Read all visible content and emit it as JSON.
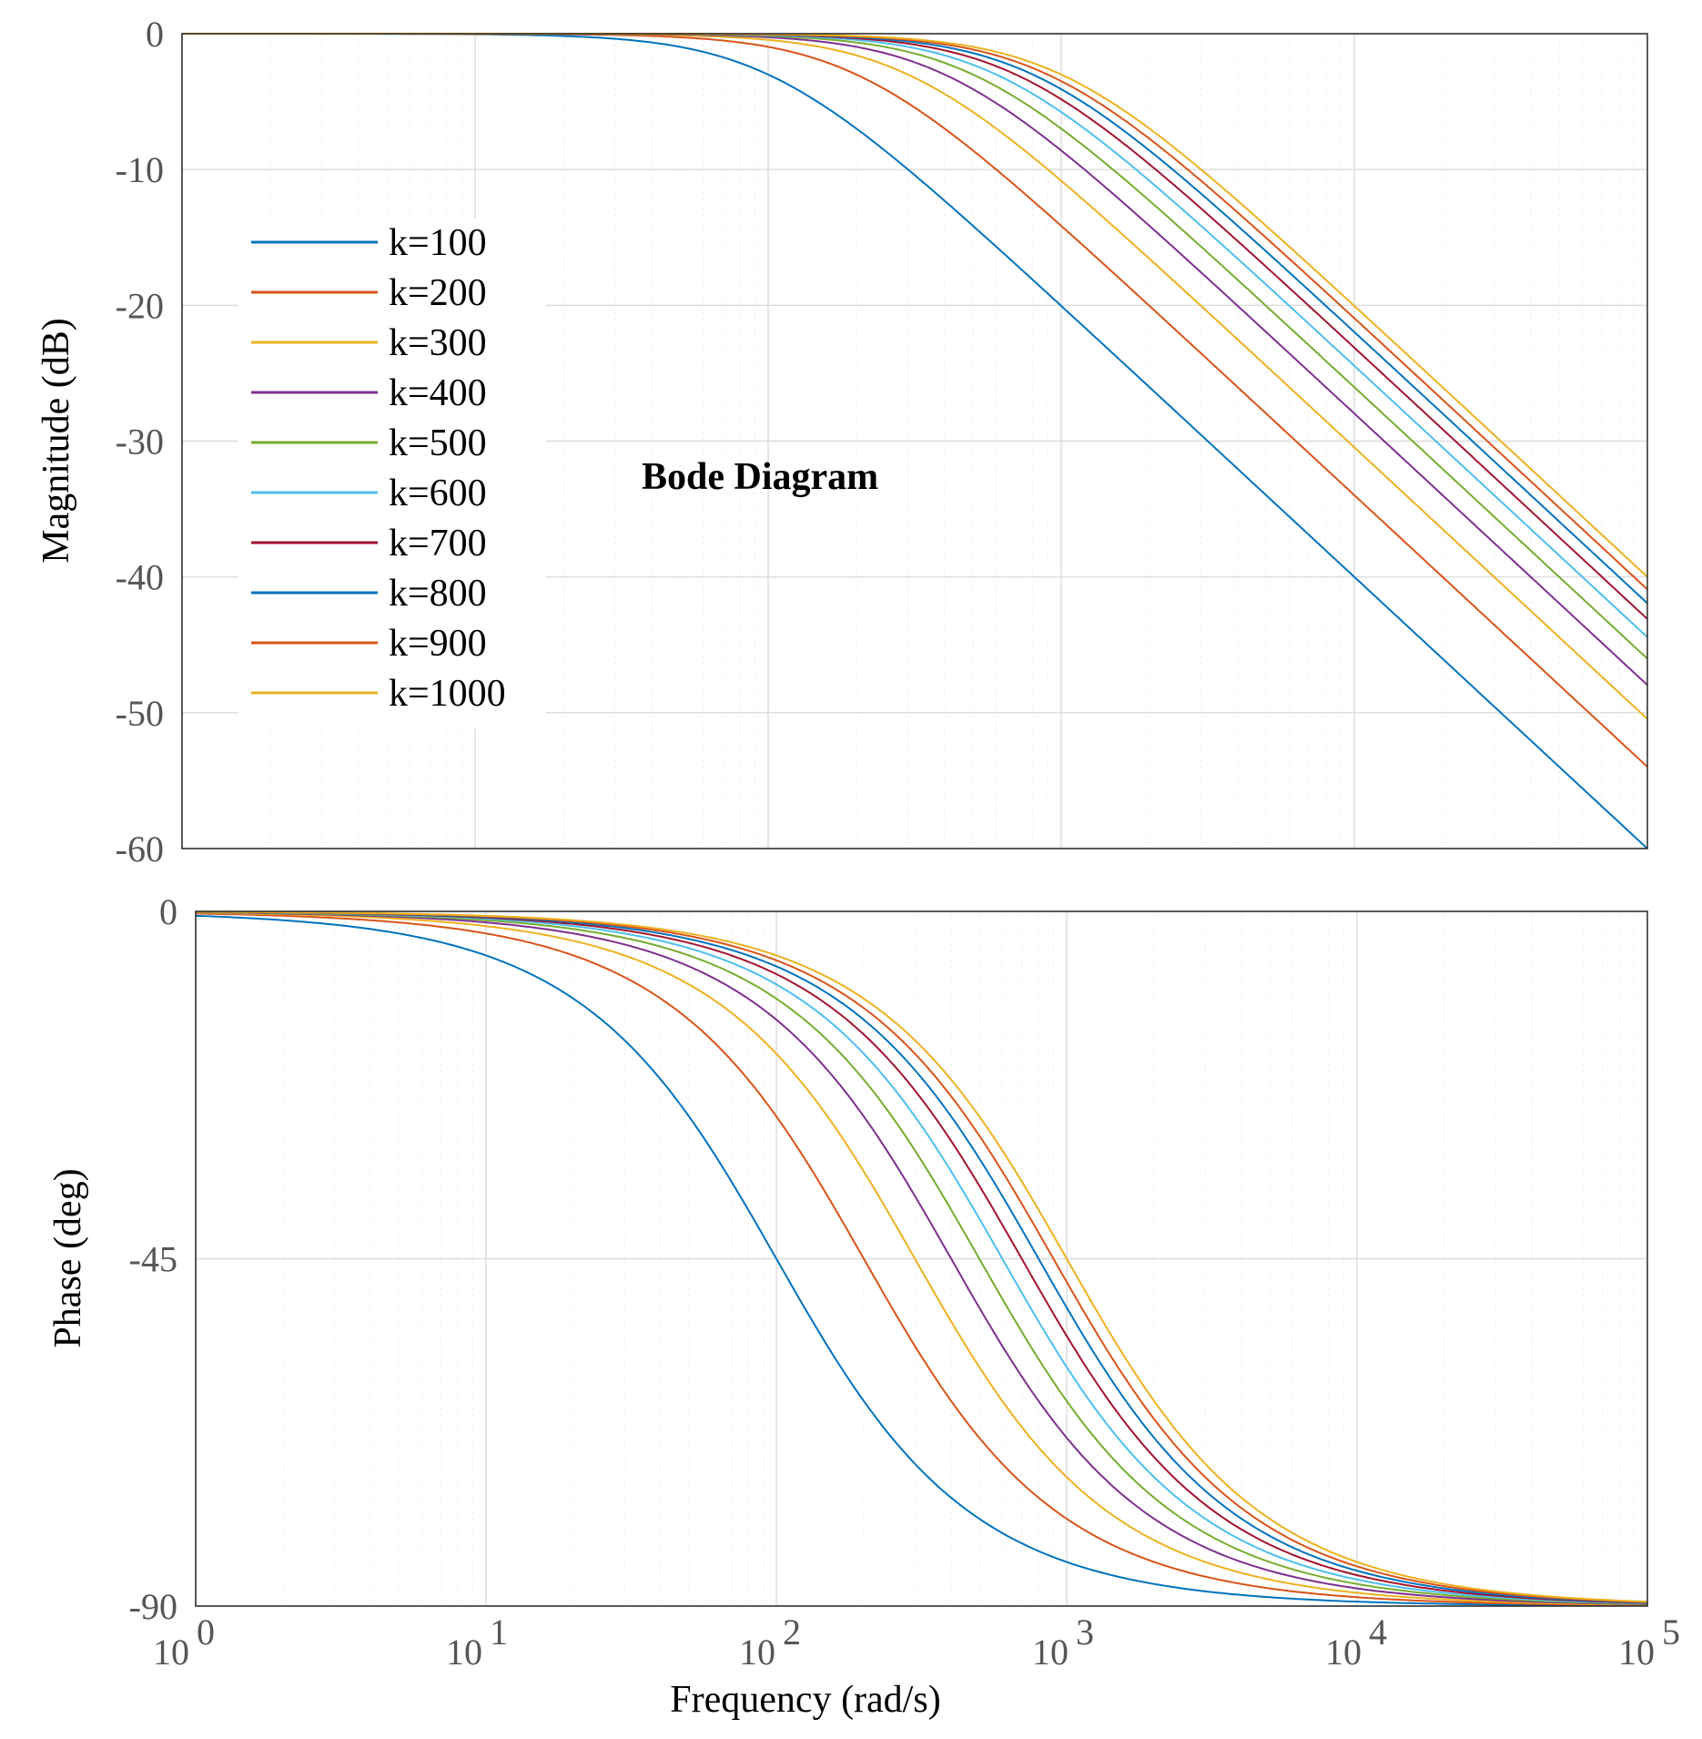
{
  "chart_data": {
    "type": "line",
    "title": "Bode Diagram",
    "xlabel": "Frequency  (rad/s)",
    "x_scale": "log",
    "xlim": [
      1,
      100000
    ],
    "x_ticks": [
      {
        "value": 1,
        "base": "10",
        "exp": "0"
      },
      {
        "value": 10,
        "base": "10",
        "exp": "1"
      },
      {
        "value": 100,
        "base": "10",
        "exp": "2"
      },
      {
        "value": 1000,
        "base": "10",
        "exp": "3"
      },
      {
        "value": 10000,
        "base": "10",
        "exp": "4"
      },
      {
        "value": 100000,
        "base": "10",
        "exp": "5"
      }
    ],
    "grid": true,
    "minor_grid": true,
    "legend_location": "left",
    "subplots": [
      {
        "id": "magnitude",
        "ylabel": "Magnitude (dB)",
        "ylim": [
          -60,
          0
        ],
        "y_ticks": [
          {
            "value": 0,
            "label": "0"
          },
          {
            "value": -10,
            "label": "-10"
          },
          {
            "value": -20,
            "label": "-20"
          },
          {
            "value": -30,
            "label": "-30"
          },
          {
            "value": -40,
            "label": "-40"
          },
          {
            "value": -50,
            "label": "-50"
          },
          {
            "value": -60,
            "label": "-60"
          }
        ]
      },
      {
        "id": "phase",
        "ylabel": "Phase (deg)",
        "ylim": [
          -90,
          0
        ],
        "y_ticks": [
          {
            "value": 0,
            "label": "0"
          },
          {
            "value": -45,
            "label": "-45"
          },
          {
            "value": -90,
            "label": "-90"
          }
        ]
      }
    ],
    "series": [
      {
        "name": "k=100",
        "color": "#0072BD",
        "corner_frequency_rad_s": 100,
        "magnitude_db": {
          "x": [
            1,
            10,
            100,
            1000,
            10000,
            100000
          ],
          "y": [
            0,
            0,
            -3,
            -20,
            -40,
            -60
          ]
        },
        "phase_deg": {
          "x": [
            1,
            10,
            100,
            1000,
            10000,
            100000
          ],
          "y": [
            -0.6,
            -5.7,
            -45,
            -84.3,
            -89.4,
            -90
          ]
        }
      },
      {
        "name": "k=200",
        "color": "#D95319",
        "corner_frequency_rad_s": 200,
        "magnitude_db": {
          "x": [
            1,
            10,
            200,
            1000,
            10000,
            100000
          ],
          "y": [
            0,
            0,
            -3,
            -14.2,
            -34,
            -54
          ]
        },
        "phase_deg": {
          "x": [
            1,
            10,
            200,
            1000,
            10000,
            100000
          ],
          "y": [
            -0.3,
            -2.9,
            -45,
            -78.7,
            -88.9,
            -89.9
          ]
        }
      },
      {
        "name": "k=300",
        "color": "#EDB120",
        "corner_frequency_rad_s": 300,
        "magnitude_db": {
          "x": [
            1,
            10,
            300,
            1000,
            10000,
            100000
          ],
          "y": [
            0,
            0,
            -3,
            -10.8,
            -30.5,
            -50.5
          ]
        },
        "phase_deg": {
          "x": [
            1,
            10,
            300,
            1000,
            10000,
            100000
          ],
          "y": [
            -0.2,
            -1.9,
            -45,
            -73.3,
            -88.3,
            -89.8
          ]
        }
      },
      {
        "name": "k=400",
        "color": "#7E2F8E",
        "corner_frequency_rad_s": 400,
        "magnitude_db": {
          "x": [
            1,
            10,
            400,
            1000,
            10000,
            100000
          ],
          "y": [
            0,
            0,
            -3,
            -8.6,
            -28,
            -48
          ]
        },
        "phase_deg": {
          "x": [
            1,
            10,
            400,
            1000,
            10000,
            100000
          ],
          "y": [
            -0.1,
            -1.4,
            -45,
            -68.2,
            -87.7,
            -89.8
          ]
        }
      },
      {
        "name": "k=500",
        "color": "#77AC30",
        "corner_frequency_rad_s": 500,
        "magnitude_db": {
          "x": [
            1,
            10,
            500,
            1000,
            10000,
            100000
          ],
          "y": [
            0,
            0,
            -3,
            -7,
            -26,
            -46
          ]
        },
        "phase_deg": {
          "x": [
            1,
            10,
            500,
            1000,
            10000,
            100000
          ],
          "y": [
            -0.1,
            -1.1,
            -45,
            -63.4,
            -87.1,
            -89.7
          ]
        }
      },
      {
        "name": "k=600",
        "color": "#4DBEEE",
        "corner_frequency_rad_s": 600,
        "magnitude_db": {
          "x": [
            1,
            10,
            600,
            1000,
            10000,
            100000
          ],
          "y": [
            0,
            0,
            -3,
            -5.8,
            -24.5,
            -44.4
          ]
        },
        "phase_deg": {
          "x": [
            1,
            10,
            600,
            1000,
            10000,
            100000
          ],
          "y": [
            -0.1,
            -1,
            -45,
            -59,
            -86.6,
            -89.7
          ]
        }
      },
      {
        "name": "k=700",
        "color": "#A2142F",
        "corner_frequency_rad_s": 700,
        "magnitude_db": {
          "x": [
            1,
            10,
            700,
            1000,
            10000,
            100000
          ],
          "y": [
            0,
            0,
            -3,
            -4.8,
            -23.1,
            -43.1
          ]
        },
        "phase_deg": {
          "x": [
            1,
            10,
            700,
            1000,
            10000,
            100000
          ],
          "y": [
            -0.1,
            -0.8,
            -45,
            -55,
            -86,
            -89.6
          ]
        }
      },
      {
        "name": "k=800",
        "color": "#0072BD",
        "corner_frequency_rad_s": 800,
        "magnitude_db": {
          "x": [
            1,
            10,
            800,
            1000,
            10000,
            100000
          ],
          "y": [
            0,
            0,
            -3,
            -4.1,
            -22,
            -42
          ]
        },
        "phase_deg": {
          "x": [
            1,
            10,
            800,
            1000,
            10000,
            100000
          ],
          "y": [
            -0.1,
            -0.7,
            -45,
            -51.3,
            -85.4,
            -89.5
          ]
        }
      },
      {
        "name": "k=900",
        "color": "#D95319",
        "corner_frequency_rad_s": 900,
        "magnitude_db": {
          "x": [
            1,
            10,
            900,
            1000,
            10000,
            100000
          ],
          "y": [
            0,
            0,
            -3,
            -3.5,
            -21,
            -40.9
          ]
        },
        "phase_deg": {
          "x": [
            1,
            10,
            900,
            1000,
            10000,
            100000
          ],
          "y": [
            -0.1,
            -0.6,
            -45,
            -48,
            -84.9,
            -89.5
          ]
        }
      },
      {
        "name": "k=1000",
        "color": "#EDB120",
        "corner_frequency_rad_s": 1000,
        "magnitude_db": {
          "x": [
            1,
            10,
            1000,
            10000,
            100000
          ],
          "y": [
            0,
            0,
            -3,
            -20,
            -40
          ]
        },
        "phase_deg": {
          "x": [
            1,
            10,
            1000,
            10000,
            100000
          ],
          "y": [
            -0.1,
            -0.6,
            -45,
            -84.3,
            -89.4
          ]
        }
      }
    ]
  }
}
